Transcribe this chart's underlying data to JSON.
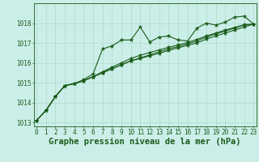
{
  "title": "Graphe pression niveau de la mer (hPa)",
  "bg_color": "#cceee8",
  "grid_color": "#aaddcc",
  "line_color": "#1a5c1a",
  "xlim": [
    -0.3,
    23.3
  ],
  "ylim": [
    1012.8,
    1019.0
  ],
  "yticks": [
    1013,
    1014,
    1015,
    1016,
    1017,
    1018
  ],
  "xticks": [
    0,
    1,
    2,
    3,
    4,
    5,
    6,
    7,
    8,
    9,
    10,
    11,
    12,
    13,
    14,
    15,
    16,
    17,
    18,
    19,
    20,
    21,
    22,
    23
  ],
  "series": [
    [
      1013.1,
      1013.6,
      1014.3,
      1014.85,
      1014.95,
      1015.15,
      1015.45,
      1016.7,
      1016.85,
      1017.15,
      1017.15,
      1017.8,
      1017.05,
      1017.3,
      1017.35,
      1017.15,
      1017.1,
      1017.75,
      1018.0,
      1017.9,
      1018.05,
      1018.3,
      1018.35,
      1017.95
    ],
    [
      1013.1,
      1013.6,
      1014.3,
      1014.85,
      1014.95,
      1015.1,
      1015.3,
      1015.5,
      1015.7,
      1015.9,
      1016.1,
      1016.25,
      1016.4,
      1016.55,
      1016.7,
      1016.82,
      1016.95,
      1017.1,
      1017.3,
      1017.45,
      1017.6,
      1017.75,
      1017.9,
      1017.95
    ],
    [
      1013.1,
      1013.6,
      1014.3,
      1014.85,
      1014.95,
      1015.1,
      1015.3,
      1015.5,
      1015.7,
      1015.9,
      1016.1,
      1016.22,
      1016.35,
      1016.48,
      1016.62,
      1016.75,
      1016.88,
      1017.0,
      1017.2,
      1017.35,
      1017.5,
      1017.65,
      1017.8,
      1017.95
    ],
    [
      1013.1,
      1013.6,
      1014.3,
      1014.85,
      1014.95,
      1015.1,
      1015.3,
      1015.55,
      1015.78,
      1016.0,
      1016.22,
      1016.38,
      1016.52,
      1016.65,
      1016.78,
      1016.9,
      1017.02,
      1017.18,
      1017.35,
      1017.5,
      1017.65,
      1017.78,
      1017.92,
      1017.95
    ]
  ],
  "marker": "*",
  "marker_size": 3.5,
  "linewidth": 0.8,
  "title_fontsize": 7.5,
  "tick_fontsize": 5.5
}
